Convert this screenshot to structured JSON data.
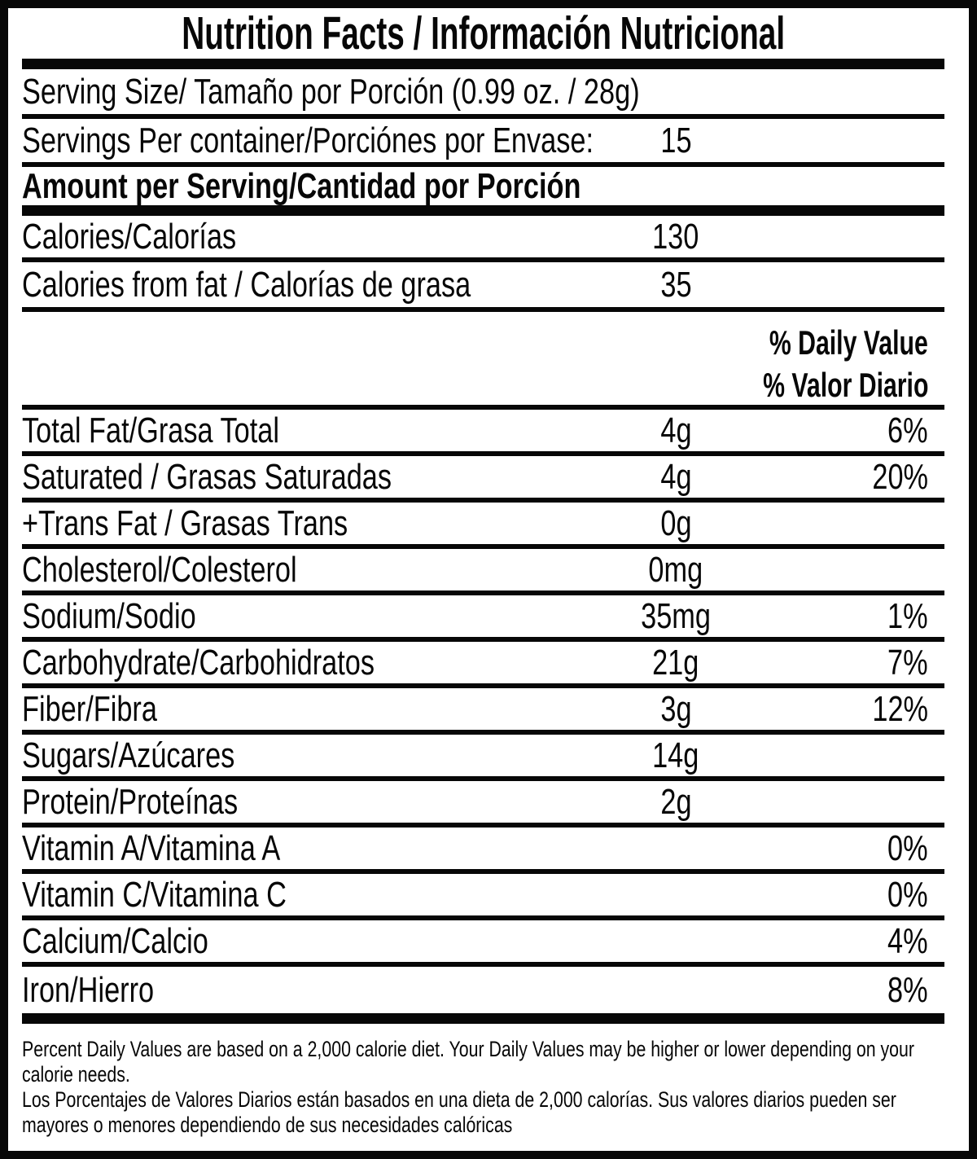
{
  "title": "Nutrition Facts / Información Nutricional",
  "serving": {
    "serving_size_label": "Serving Size/ Tamaño por Porción  (0.99 oz. / 28g)",
    "servings_per_container_label": "Servings Per container/Porciónes por Envase:",
    "servings_per_container_value": "15",
    "amount_per_serving_label": "Amount per Serving/Cantidad por Porción"
  },
  "calories": {
    "calories_label": "Calories/Calorías",
    "calories_value": "130",
    "calories_from_fat_label": "Calories from fat / Calorías de grasa",
    "calories_from_fat_value": "35"
  },
  "daily_value_header": {
    "line1": "% Daily Value",
    "line2": "% Valor Diario"
  },
  "nutrients": [
    {
      "label": "Total Fat/Grasa Total",
      "amount": "4g",
      "dv": "6%"
    },
    {
      "label": "Saturated / Grasas Saturadas",
      "amount": "4g",
      "dv": "20%"
    },
    {
      "label": "+Trans Fat / Grasas Trans",
      "amount": "0g",
      "dv": ""
    },
    {
      "label": "Cholesterol/Colesterol",
      "amount": "0mg",
      "dv": ""
    },
    {
      "label": "Sodium/Sodio",
      "amount": "35mg",
      "dv": "1%"
    },
    {
      "label": "Carbohydrate/Carbohidratos",
      "amount": "21g",
      "dv": "7%"
    },
    {
      "label": "Fiber/Fibra",
      "amount": "3g",
      "dv": "12%"
    },
    {
      "label": "Sugars/Azúcares",
      "amount": "14g",
      "dv": ""
    },
    {
      "label": "Protein/Proteínas",
      "amount": "2g",
      "dv": ""
    },
    {
      "label": "Vitamin A/Vitamina A",
      "amount": "",
      "dv": "0%"
    },
    {
      "label": "Vitamin C/Vitamina C",
      "amount": "",
      "dv": "0%"
    },
    {
      "label": "Calcium/Calcio",
      "amount": "",
      "dv": "4%"
    },
    {
      "label": "Iron/Hierro",
      "amount": "",
      "dv": "8%"
    }
  ],
  "footnotes": {
    "en_lines": [
      "Percent Daily Values are based on a 2,000 calorie diet. Your Daily Values may be higher or lower depending on your",
      "calorie needs."
    ],
    "es_lines": [
      "Los Porcentajes de Valores Diarios están basados en una dieta de 2,000 calorías. Sus valores diarios pueden ser",
      "mayores o menores dependiendo de sus necesidades calóricas"
    ]
  },
  "colors": {
    "ink": "#070707",
    "background": "#ffffff"
  }
}
